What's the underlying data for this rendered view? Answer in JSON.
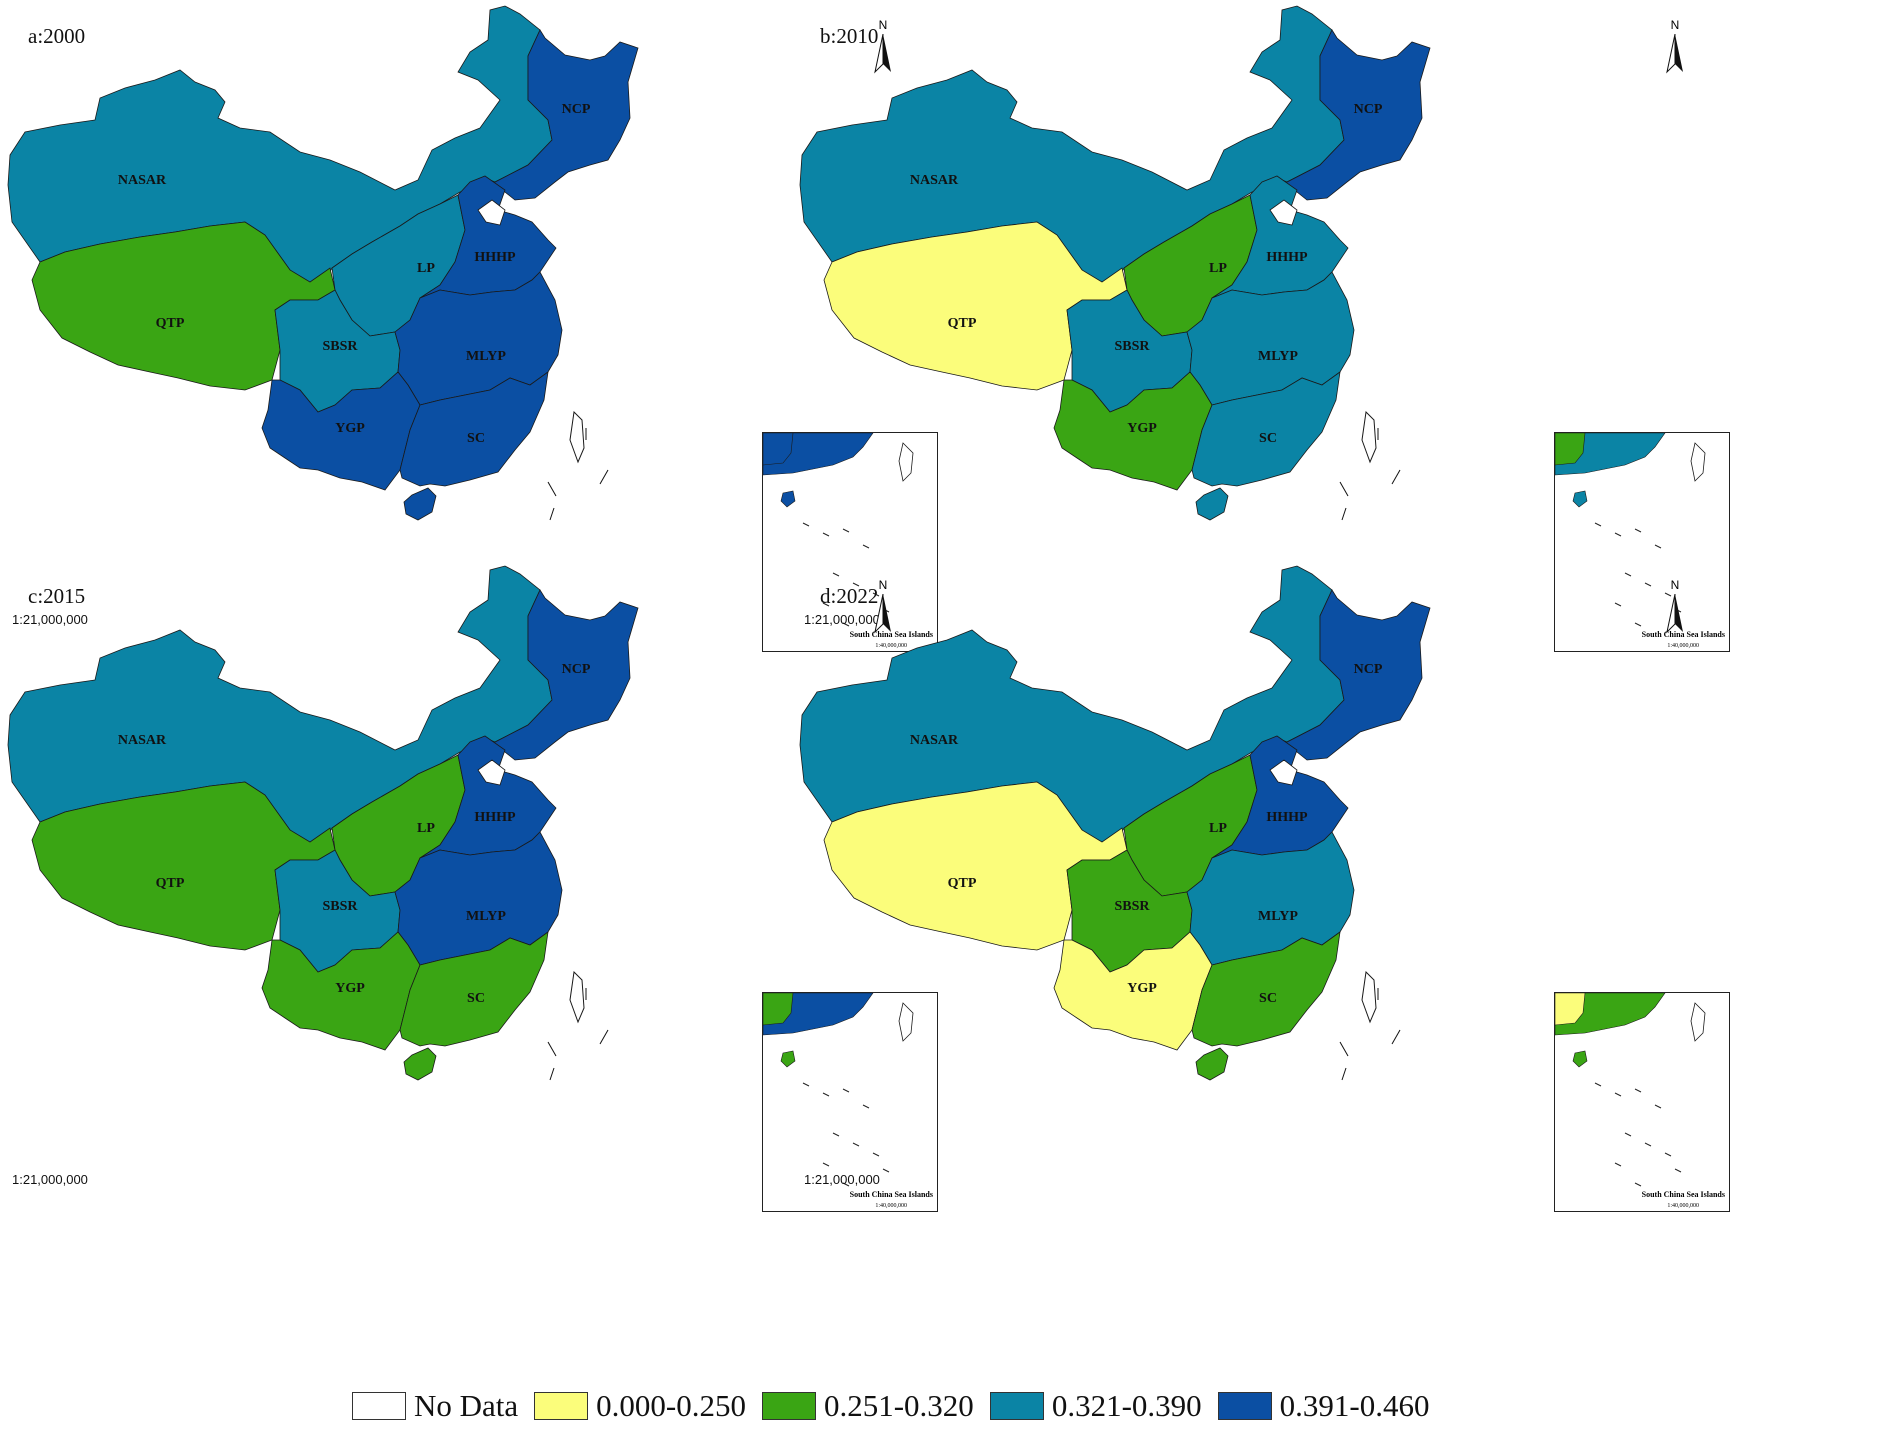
{
  "colors": {
    "no_data": "#ffffff",
    "c1": "#fbfd7b",
    "c2": "#3aa514",
    "c3": "#0b84a5",
    "c4": "#0b4fa3"
  },
  "legend": [
    {
      "label": "No Data",
      "class": "no_data"
    },
    {
      "label": "0.000-0.250",
      "class": "c1"
    },
    {
      "label": "0.251-0.320",
      "class": "c2"
    },
    {
      "label": "0.321-0.390",
      "class": "c3"
    },
    {
      "label": "0.391-0.460",
      "class": "c4"
    }
  ],
  "north_label": "N",
  "scale_main": "1:21,000,000",
  "inset_title": "South China Sea Islands",
  "inset_scale": "1:40,000,000",
  "region_labels": {
    "NASAR": "NASAR",
    "NCP": "NCP",
    "QTP": "QTP",
    "LP": "LP",
    "HHHP": "HHHP",
    "SBSR": "SBSR",
    "MLYP": "MLYP",
    "YGP": "YGP",
    "SC": "SC"
  },
  "panels": [
    {
      "label": "a:2000",
      "classes": {
        "NASAR": "c3",
        "NCP": "c4",
        "QTP": "c2",
        "LP": "c3",
        "HHHP": "c4",
        "SBSR": "c3",
        "MLYP": "c4",
        "YGP": "c4",
        "SC": "c4"
      }
    },
    {
      "label": "b:2010",
      "classes": {
        "NASAR": "c3",
        "NCP": "c4",
        "QTP": "c1",
        "LP": "c2",
        "HHHP": "c3",
        "SBSR": "c3",
        "MLYP": "c3",
        "YGP": "c2",
        "SC": "c3"
      }
    },
    {
      "label": "c:2015",
      "classes": {
        "NASAR": "c3",
        "NCP": "c4",
        "QTP": "c2",
        "LP": "c2",
        "HHHP": "c4",
        "SBSR": "c3",
        "MLYP": "c4",
        "YGP": "c2",
        "SC": "c2"
      }
    },
    {
      "label": "d:2022",
      "classes": {
        "NASAR": "c3",
        "NCP": "c4",
        "QTP": "c1",
        "LP": "c2",
        "HHHP": "c4",
        "SBSR": "c2",
        "MLYP": "c3",
        "YGP": "c1",
        "SC": "c2"
      }
    }
  ]
}
